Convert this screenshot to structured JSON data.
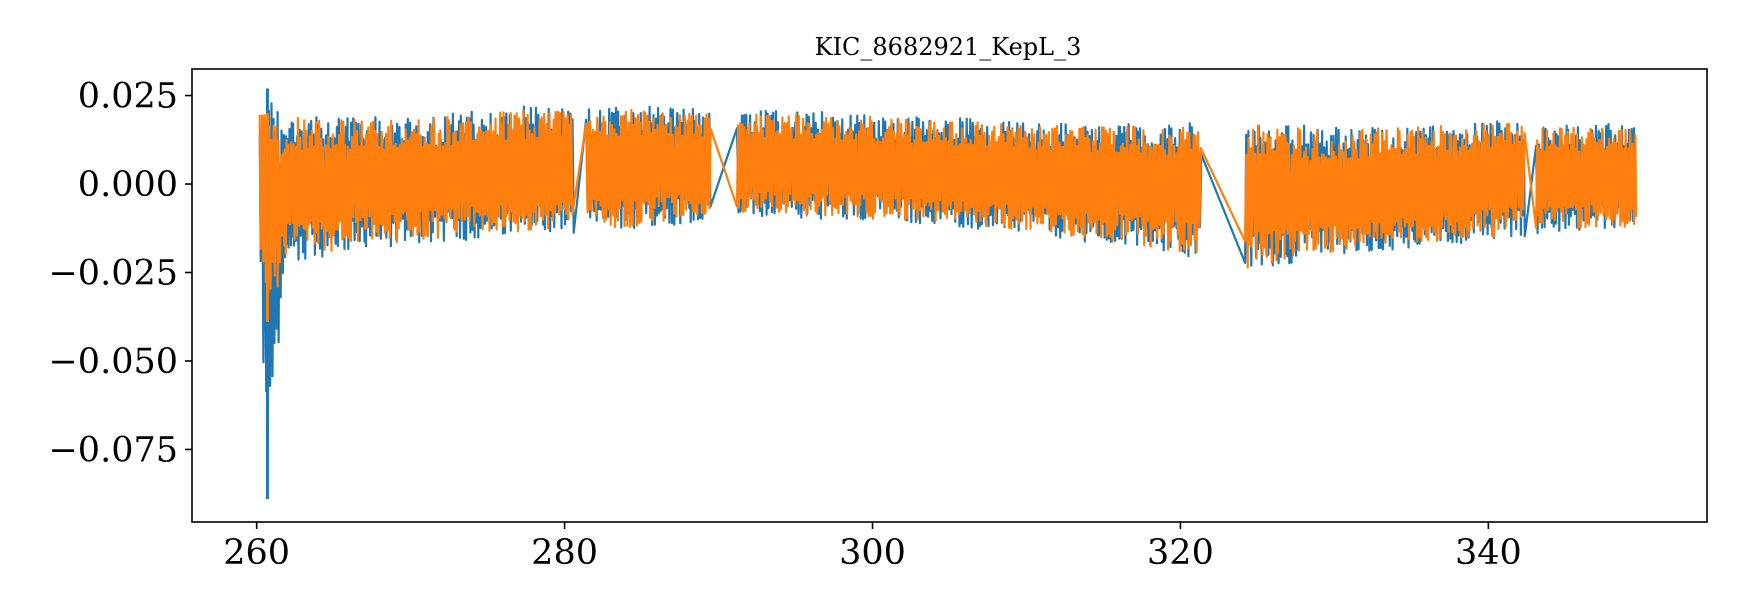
{
  "chart_data": {
    "type": "line",
    "title": "KIC_8682921_KepL_3",
    "xlabel": "",
    "ylabel": "",
    "xlim": [
      255.8,
      354.2
    ],
    "ylim": [
      -0.0955,
      0.0325
    ],
    "x_ticks": [
      {
        "value": 260,
        "label": "260"
      },
      {
        "value": 280,
        "label": "280"
      },
      {
        "value": 300,
        "label": "300"
      },
      {
        "value": 320,
        "label": "320"
      },
      {
        "value": 340,
        "label": "340"
      }
    ],
    "y_ticks": [
      {
        "value": 0.025,
        "label": "0.025"
      },
      {
        "value": 0.0,
        "label": "0.000"
      },
      {
        "value": -0.025,
        "label": "−0.025"
      },
      {
        "value": -0.05,
        "label": "−0.050"
      },
      {
        "value": -0.075,
        "label": "−0.075"
      }
    ],
    "grid": false,
    "legend": "none",
    "colors": {
      "series_1": "#1f77b4",
      "series_2": "#ff7f0e"
    },
    "x_range": [
      260.2,
      349.6
    ],
    "gaps": [
      [
        280.6,
        281.4
      ],
      [
        289.5,
        291.2
      ],
      [
        321.4,
        324.2
      ],
      [
        342.4,
        343.1
      ]
    ],
    "series": [
      {
        "color": "#1f77b4",
        "envelope": [
          {
            "x": 260.2,
            "hi": 0.021,
            "lo": -0.022
          },
          {
            "x": 260.7,
            "hi": 0.027,
            "lo": -0.089
          },
          {
            "x": 262,
            "hi": 0.02,
            "lo": -0.022
          },
          {
            "x": 270,
            "hi": 0.019,
            "lo": -0.017
          },
          {
            "x": 280,
            "hi": 0.023,
            "lo": -0.014
          },
          {
            "x": 285,
            "hi": 0.022,
            "lo": -0.013
          },
          {
            "x": 289.5,
            "hi": 0.021,
            "lo": -0.01
          },
          {
            "x": 291.2,
            "hi": 0.021,
            "lo": -0.01
          },
          {
            "x": 300,
            "hi": 0.02,
            "lo": -0.01
          },
          {
            "x": 310,
            "hi": 0.018,
            "lo": -0.014
          },
          {
            "x": 320,
            "hi": 0.017,
            "lo": -0.02
          },
          {
            "x": 321.4,
            "hi": 0.018,
            "lo": -0.022
          },
          {
            "x": 324.2,
            "hi": 0.018,
            "lo": -0.025
          },
          {
            "x": 330,
            "hi": 0.016,
            "lo": -0.02
          },
          {
            "x": 342.4,
            "hi": 0.018,
            "lo": -0.015
          },
          {
            "x": 343.1,
            "hi": 0.017,
            "lo": -0.014
          },
          {
            "x": 349.6,
            "hi": 0.017,
            "lo": -0.013
          }
        ]
      },
      {
        "color": "#ff7f0e",
        "envelope": [
          {
            "x": 260.2,
            "hi": 0.021,
            "lo": -0.022
          },
          {
            "x": 260.7,
            "hi": 0.02,
            "lo": -0.039
          },
          {
            "x": 262,
            "hi": 0.019,
            "lo": -0.021
          },
          {
            "x": 270,
            "hi": 0.018,
            "lo": -0.016
          },
          {
            "x": 280,
            "hi": 0.022,
            "lo": -0.013
          },
          {
            "x": 285,
            "hi": 0.021,
            "lo": -0.012
          },
          {
            "x": 289.5,
            "hi": 0.02,
            "lo": -0.009
          },
          {
            "x": 291.2,
            "hi": 0.02,
            "lo": -0.009
          },
          {
            "x": 300,
            "hi": 0.019,
            "lo": -0.01
          },
          {
            "x": 310,
            "hi": 0.017,
            "lo": -0.013
          },
          {
            "x": 320,
            "hi": 0.016,
            "lo": -0.019
          },
          {
            "x": 321.4,
            "hi": 0.016,
            "lo": -0.02
          },
          {
            "x": 324.2,
            "hi": 0.017,
            "lo": -0.024
          },
          {
            "x": 330,
            "hi": 0.015,
            "lo": -0.019
          },
          {
            "x": 342.4,
            "hi": 0.018,
            "lo": -0.014
          },
          {
            "x": 343.1,
            "hi": 0.016,
            "lo": -0.013
          },
          {
            "x": 349.6,
            "hi": 0.016,
            "lo": -0.012
          }
        ]
      }
    ]
  }
}
